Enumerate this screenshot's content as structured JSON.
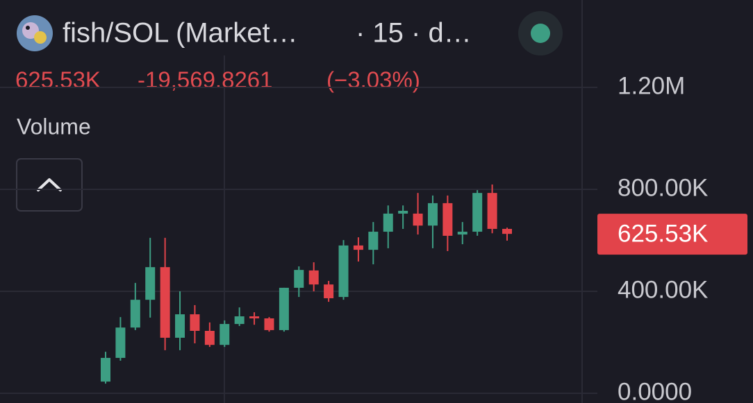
{
  "header": {
    "title": "fish/SOL (Market…",
    "interval": "· 15 · d…",
    "price": "625.53K",
    "change": "-19,569.8261",
    "change_pct": "(−3.03%)",
    "indicator": "Volume"
  },
  "chart_data": {
    "type": "candlestick",
    "open": [
      46000,
      139000,
      258000,
      367000,
      495000,
      218000,
      310000,
      245000,
      190000,
      272000,
      302000,
      294000,
      248000,
      414000,
      482000,
      427000,
      378000,
      580000,
      563000,
      634000,
      705000,
      705000,
      658000,
      746000,
      623000,
      634000,
      786000,
      645100
    ],
    "high": [
      163000,
      299000,
      433000,
      610000,
      610000,
      400000,
      346000,
      278000,
      286000,
      337000,
      318000,
      299000,
      414000,
      498000,
      514000,
      441000,
      601000,
      612000,
      672000,
      737000,
      737000,
      786000,
      776000,
      776000,
      672000,
      797000,
      819000,
      650000
    ],
    "low": [
      38000,
      128000,
      248000,
      297000,
      169000,
      169000,
      196000,
      182000,
      182000,
      264000,
      269000,
      242000,
      242000,
      378000,
      400000,
      359000,
      367000,
      517000,
      506000,
      569000,
      645000,
      623000,
      569000,
      558000,
      585000,
      618000,
      628000,
      599000
    ],
    "close": [
      139000,
      258000,
      367000,
      495000,
      218000,
      310000,
      245000,
      190000,
      272000,
      302000,
      294000,
      248000,
      414000,
      484000,
      427000,
      373000,
      580000,
      563000,
      634000,
      705000,
      716000,
      658000,
      746000,
      618000,
      634000,
      786000,
      645100,
      625530
    ],
    "up_color": "#3d9e83",
    "down_color": "#e2434a",
    "ylim": [
      -38000,
      1543000
    ],
    "yticks": [
      {
        "value": 0,
        "label": "0.0000"
      },
      {
        "value": 400000,
        "label": "400.00K"
      },
      {
        "value": 800000,
        "label": "800.00K"
      },
      {
        "value": 1200000,
        "label": "1.20M"
      }
    ],
    "grid": true,
    "last_price": {
      "value": 625530,
      "label": "625.53K"
    }
  }
}
